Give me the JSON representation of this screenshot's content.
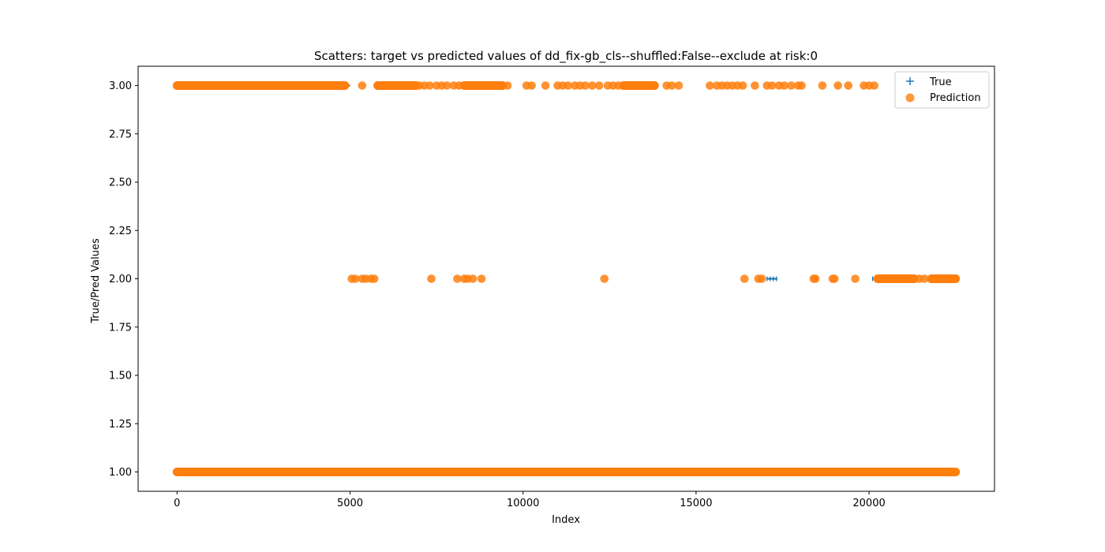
{
  "chart_data": {
    "type": "scatter",
    "title": "Scatters: target vs predicted values of dd_fix-gb_cls--shuffled:False--exclude at risk:0",
    "xlabel": "Index",
    "ylabel": "True/Pred Values",
    "xlim": [
      -1125,
      23625
    ],
    "ylim": [
      0.9,
      3.1
    ],
    "xticks": [
      0,
      5000,
      10000,
      15000,
      20000
    ],
    "xtick_labels": [
      "0",
      "5000",
      "10000",
      "15000",
      "20000"
    ],
    "yticks": [
      1.0,
      1.25,
      1.5,
      1.75,
      2.0,
      2.25,
      2.5,
      2.75,
      3.0
    ],
    "ytick_labels": [
      "1.00",
      "1.25",
      "1.50",
      "1.75",
      "2.00",
      "2.25",
      "2.50",
      "2.75",
      "3.00"
    ],
    "grid": false,
    "legend_position": "upper right",
    "series": [
      {
        "name": "True",
        "marker": "plus",
        "color": "#1f77b4",
        "segments": [
          {
            "y": 1,
            "x_start": 0,
            "x_end": 22500
          },
          {
            "y": 3,
            "x_start": 0,
            "x_end": 5000
          },
          {
            "y": 2,
            "x_start": 17050,
            "x_end": 17350
          },
          {
            "y": 2,
            "x_start": 20100,
            "x_end": 20300
          }
        ],
        "points": []
      },
      {
        "name": "Prediction",
        "marker": "circle",
        "color": "#ff7f0e",
        "segments": [
          {
            "y": 1,
            "x_start": 0,
            "x_end": 22500
          },
          {
            "y": 3,
            "x_start": 0,
            "x_end": 4850
          },
          {
            "y": 3,
            "x_start": 5800,
            "x_end": 6900
          },
          {
            "y": 3,
            "x_start": 8300,
            "x_end": 9400
          },
          {
            "y": 3,
            "x_start": 12900,
            "x_end": 13800
          },
          {
            "y": 2,
            "x_start": 20250,
            "x_end": 21300
          },
          {
            "y": 2,
            "x_start": 21800,
            "x_end": 22500
          }
        ],
        "points": [
          {
            "x": 5350,
            "y": 3
          },
          {
            "x": 7000,
            "y": 3
          },
          {
            "x": 7150,
            "y": 3
          },
          {
            "x": 7300,
            "y": 3
          },
          {
            "x": 7500,
            "y": 3
          },
          {
            "x": 7650,
            "y": 3
          },
          {
            "x": 7800,
            "y": 3
          },
          {
            "x": 8000,
            "y": 3
          },
          {
            "x": 8150,
            "y": 3
          },
          {
            "x": 9550,
            "y": 3
          },
          {
            "x": 10100,
            "y": 3
          },
          {
            "x": 10250,
            "y": 3
          },
          {
            "x": 10650,
            "y": 3
          },
          {
            "x": 11000,
            "y": 3
          },
          {
            "x": 11150,
            "y": 3
          },
          {
            "x": 11300,
            "y": 3
          },
          {
            "x": 11500,
            "y": 3
          },
          {
            "x": 11650,
            "y": 3
          },
          {
            "x": 11800,
            "y": 3
          },
          {
            "x": 12000,
            "y": 3
          },
          {
            "x": 12200,
            "y": 3
          },
          {
            "x": 12450,
            "y": 3
          },
          {
            "x": 12600,
            "y": 3
          },
          {
            "x": 12750,
            "y": 3
          },
          {
            "x": 14150,
            "y": 3
          },
          {
            "x": 14300,
            "y": 3
          },
          {
            "x": 14500,
            "y": 3
          },
          {
            "x": 15400,
            "y": 3
          },
          {
            "x": 15600,
            "y": 3
          },
          {
            "x": 15750,
            "y": 3
          },
          {
            "x": 15900,
            "y": 3
          },
          {
            "x": 16050,
            "y": 3
          },
          {
            "x": 16200,
            "y": 3
          },
          {
            "x": 16350,
            "y": 3
          },
          {
            "x": 16700,
            "y": 3
          },
          {
            "x": 17050,
            "y": 3
          },
          {
            "x": 17200,
            "y": 3
          },
          {
            "x": 17400,
            "y": 3
          },
          {
            "x": 17550,
            "y": 3
          },
          {
            "x": 17750,
            "y": 3
          },
          {
            "x": 17950,
            "y": 3
          },
          {
            "x": 18050,
            "y": 3
          },
          {
            "x": 18650,
            "y": 3
          },
          {
            "x": 19100,
            "y": 3
          },
          {
            "x": 19400,
            "y": 3
          },
          {
            "x": 19850,
            "y": 3
          },
          {
            "x": 20000,
            "y": 3
          },
          {
            "x": 20150,
            "y": 3
          },
          {
            "x": 5050,
            "y": 2
          },
          {
            "x": 5150,
            "y": 2
          },
          {
            "x": 5350,
            "y": 2
          },
          {
            "x": 5450,
            "y": 2
          },
          {
            "x": 5600,
            "y": 2
          },
          {
            "x": 5700,
            "y": 2
          },
          {
            "x": 7350,
            "y": 2
          },
          {
            "x": 8100,
            "y": 2
          },
          {
            "x": 8300,
            "y": 2
          },
          {
            "x": 8400,
            "y": 2
          },
          {
            "x": 8550,
            "y": 2
          },
          {
            "x": 8800,
            "y": 2
          },
          {
            "x": 12350,
            "y": 2
          },
          {
            "x": 16400,
            "y": 2
          },
          {
            "x": 16800,
            "y": 2
          },
          {
            "x": 16900,
            "y": 2
          },
          {
            "x": 18400,
            "y": 2
          },
          {
            "x": 18450,
            "y": 2
          },
          {
            "x": 18950,
            "y": 2
          },
          {
            "x": 19000,
            "y": 2
          },
          {
            "x": 19600,
            "y": 2
          },
          {
            "x": 21450,
            "y": 2
          },
          {
            "x": 21600,
            "y": 2
          }
        ]
      }
    ]
  },
  "colors": {
    "true": "#1f77b4",
    "prediction": "#ff7f0e"
  }
}
